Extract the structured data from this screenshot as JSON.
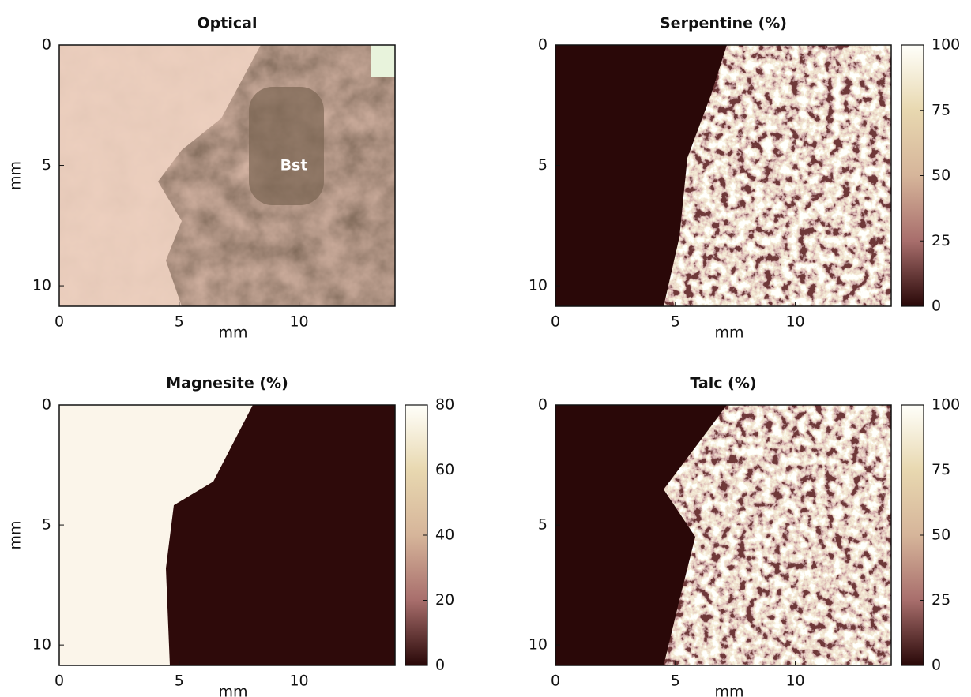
{
  "chart_data": [
    {
      "type": "image",
      "title": "Optical",
      "xlabel": "mm",
      "ylabel": "mm",
      "xlim": [
        0,
        14
      ],
      "ylim": [
        0,
        10.85
      ],
      "xticks": [
        0,
        5,
        10
      ],
      "yticks": [
        0,
        5,
        10
      ],
      "annotation": "Bst"
    },
    {
      "type": "heatmap",
      "title": "Serpentine (%)",
      "xlabel": "mm",
      "xlim": [
        0,
        14
      ],
      "ylim": [
        0,
        10.85
      ],
      "xticks": [
        0,
        5,
        10
      ],
      "yticks": [
        0,
        5,
        10
      ],
      "clim": [
        0,
        100
      ],
      "cticks": [
        0,
        25,
        50,
        75,
        100
      ]
    },
    {
      "type": "heatmap",
      "title": "Magnesite (%)",
      "xlabel": "mm",
      "ylabel": "mm",
      "xlim": [
        0,
        14
      ],
      "ylim": [
        0,
        10.85
      ],
      "xticks": [
        0,
        5,
        10
      ],
      "yticks": [
        0,
        5,
        10
      ],
      "clim": [
        0,
        80
      ],
      "cticks": [
        0,
        20,
        40,
        60,
        80
      ]
    },
    {
      "type": "heatmap",
      "title": "Talc (%)",
      "xlabel": "mm",
      "xlim": [
        0,
        14
      ],
      "ylim": [
        0,
        10.85
      ],
      "xticks": [
        0,
        5,
        10
      ],
      "yticks": [
        0,
        5,
        10
      ],
      "clim": [
        0,
        100
      ],
      "cticks": [
        0,
        25,
        50,
        75,
        100
      ]
    }
  ]
}
